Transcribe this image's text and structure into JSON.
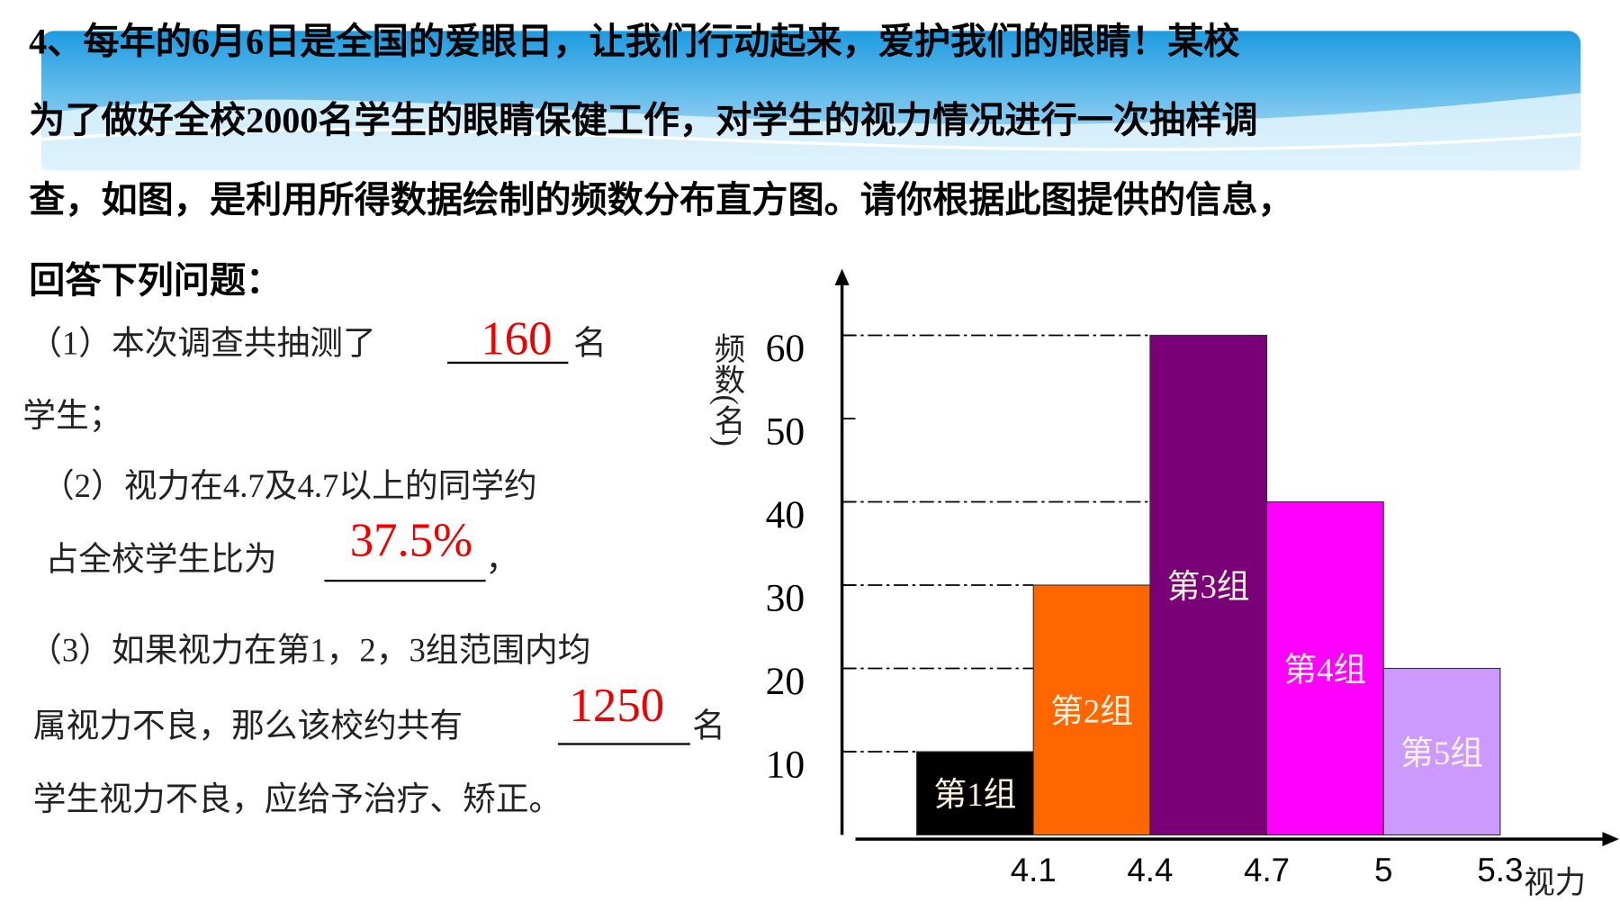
{
  "problem": {
    "lines": [
      "4、每年的6月6日是全国的爱眼日，让我们行动起来，爱护我们的眼睛！某校",
      "为了做好全校2000名学生的眼睛保健工作，对学生的视力情况进行一次抽样调",
      "查，如图，是利用所得数据绘制的频数分布直方图。请你根据此图提供的信息，",
      "回答下列问题："
    ],
    "q1": {
      "before": "（1）本次调查共抽测了",
      "answer": "160",
      "after": "名",
      "next": "学生；"
    },
    "q2": {
      "line1": "（2）视力在4.7及4.7以上的同学约",
      "before": "占全校学生比为",
      "answer": "37.5%",
      "after": "，"
    },
    "q3": {
      "line1": "（3）如果视力在第1，2，3组范围内均",
      "before": "属视力不良，那么该校约共有",
      "answer": "1250",
      "after": "名",
      "next": "学生视力不良，应给予治疗、矫正。"
    }
  },
  "chart_data": {
    "type": "histogram",
    "y_label": "频数(名)",
    "x_label": "视力",
    "bins": [
      3.8,
      4.1,
      4.4,
      4.7,
      5.0,
      5.3
    ],
    "values": [
      10,
      30,
      60,
      40,
      20
    ],
    "bar_labels": [
      "第1组",
      "第2组",
      "第3组",
      "第4组",
      "第5组"
    ],
    "colors": [
      "#000000",
      "#ff6600",
      "#7a0078",
      "#ff00ff",
      "#cc99ff"
    ],
    "xlim": [
      3.6,
      5.6
    ],
    "xticks": [
      4.1,
      4.4,
      4.7,
      5.0,
      5.3
    ],
    "ylim": [
      0,
      68
    ],
    "yticks": [
      10,
      20,
      30,
      40,
      50,
      60
    ]
  }
}
